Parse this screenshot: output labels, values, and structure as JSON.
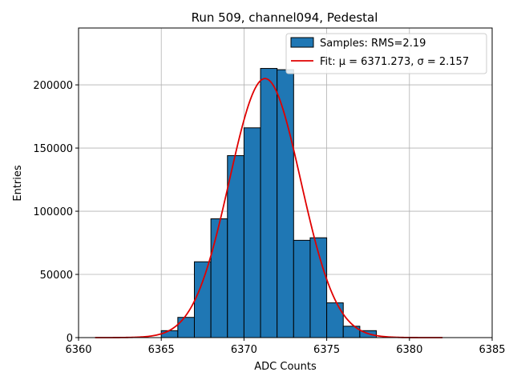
{
  "chart_data": {
    "type": "bar",
    "title": "Run 509, channel094, Pedestal",
    "xlabel": "ADC Counts",
    "ylabel": "Entries",
    "xlim": [
      6360,
      6385
    ],
    "ylim": [
      0,
      245000
    ],
    "xticks": [
      6360,
      6365,
      6370,
      6375,
      6380,
      6385
    ],
    "yticks": [
      0,
      50000,
      100000,
      150000,
      200000
    ],
    "grid": true,
    "legend_position": "top-right",
    "histogram": {
      "name": "Samples: RMS=2.19",
      "color": "#1f77b4",
      "edge_color": "#000000",
      "bins": [
        {
          "x0": 6365.0,
          "x1": 6366.0,
          "count": 5500
        },
        {
          "x0": 6366.0,
          "x1": 6367.0,
          "count": 16000
        },
        {
          "x0": 6367.0,
          "x1": 6368.0,
          "count": 60000
        },
        {
          "x0": 6368.0,
          "x1": 6369.0,
          "count": 94000
        },
        {
          "x0": 6369.0,
          "x1": 6370.0,
          "count": 144000
        },
        {
          "x0": 6370.0,
          "x1": 6371.0,
          "count": 166000
        },
        {
          "x0": 6371.0,
          "x1": 6372.0,
          "count": 213000
        },
        {
          "x0": 6372.0,
          "x1": 6373.0,
          "count": 212000
        },
        {
          "x0": 6373.0,
          "x1": 6374.0,
          "count": 77000
        },
        {
          "x0": 6374.0,
          "x1": 6375.0,
          "count": 79000
        },
        {
          "x0": 6375.0,
          "x1": 6376.0,
          "count": 27500
        },
        {
          "x0": 6376.0,
          "x1": 6377.0,
          "count": 9000
        },
        {
          "x0": 6377.0,
          "x1": 6378.0,
          "count": 5500
        }
      ]
    },
    "fit": {
      "name": "Fit: μ = 6371.273, σ = 2.157",
      "color": "#e00000",
      "type": "gaussian",
      "mu": 6371.273,
      "sigma": 2.157,
      "amplitude": 205000,
      "x_range": [
        6361,
        6382
      ]
    }
  }
}
